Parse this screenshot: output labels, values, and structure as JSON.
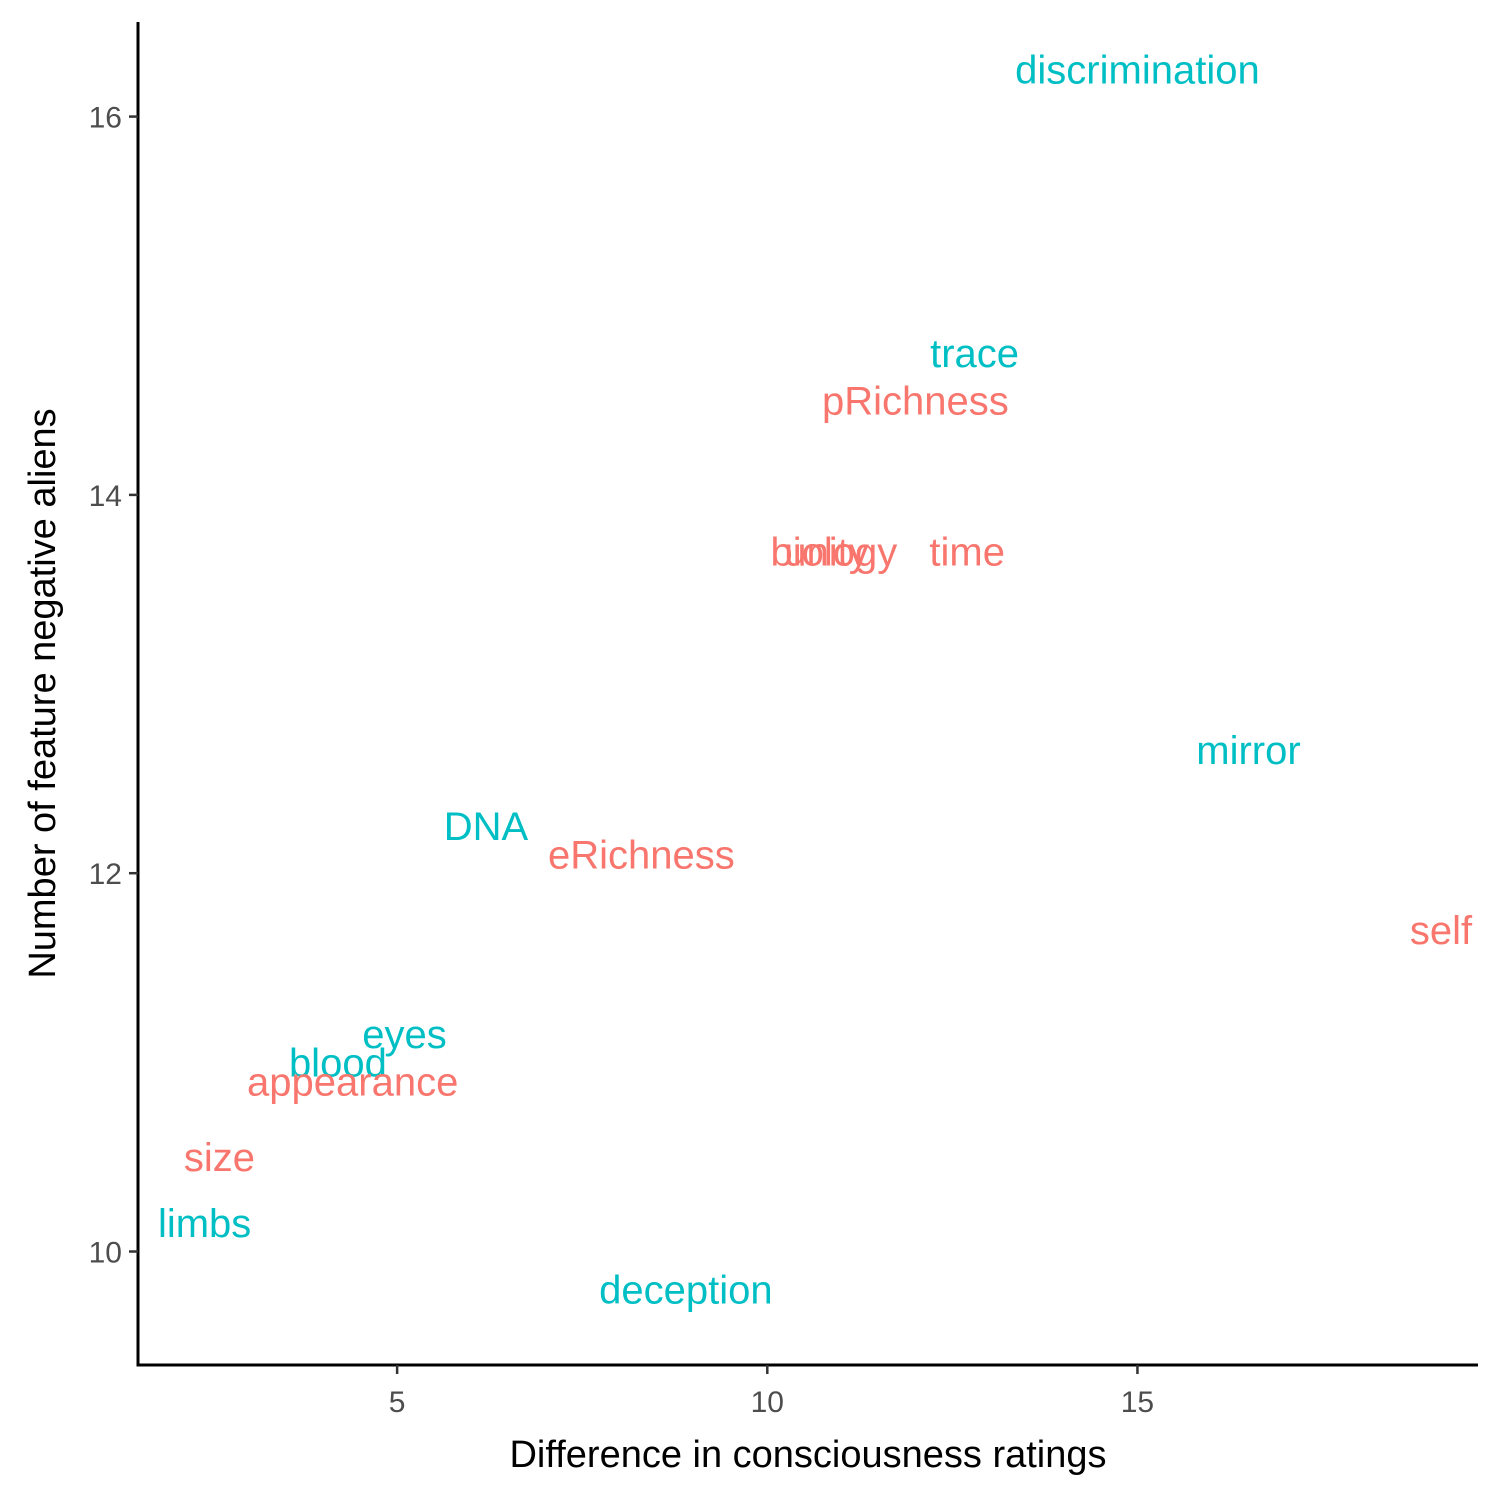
{
  "colors": {
    "groupA": "#F8766D",
    "groupB": "#00BFC4"
  },
  "chart_data": {
    "type": "scatter",
    "xlabel": "Difference in consciousness ratings",
    "ylabel": "Number of feature negative aliens",
    "xlim": [
      1.5,
      19.6
    ],
    "ylim": [
      9.4,
      16.5
    ],
    "xticks": [
      5,
      10,
      15
    ],
    "yticks": [
      10,
      12,
      14,
      16
    ],
    "grid": false,
    "legend": "none",
    "points": [
      {
        "label": "discrimination",
        "x": 15.0,
        "y": 16.25,
        "group": "groupB"
      },
      {
        "label": "trace",
        "x": 12.8,
        "y": 14.75,
        "group": "groupB"
      },
      {
        "label": "pRichness",
        "x": 12.0,
        "y": 14.5,
        "group": "groupA"
      },
      {
        "label": "biology",
        "x": 10.9,
        "y": 13.7,
        "group": "groupA"
      },
      {
        "label": "unity",
        "x": 10.8,
        "y": 13.7,
        "group": "groupA"
      },
      {
        "label": "time",
        "x": 12.7,
        "y": 13.7,
        "group": "groupA"
      },
      {
        "label": "mirror",
        "x": 16.5,
        "y": 12.65,
        "group": "groupB"
      },
      {
        "label": "DNA",
        "x": 6.2,
        "y": 12.25,
        "group": "groupB"
      },
      {
        "label": "eRichness",
        "x": 8.3,
        "y": 12.1,
        "group": "groupA"
      },
      {
        "label": "self",
        "x": 19.1,
        "y": 11.7,
        "group": "groupA"
      },
      {
        "label": "eyes",
        "x": 5.1,
        "y": 11.15,
        "group": "groupB"
      },
      {
        "label": "blood",
        "x": 4.2,
        "y": 11.0,
        "group": "groupB"
      },
      {
        "label": "appearance",
        "x": 4.4,
        "y": 10.9,
        "group": "groupA"
      },
      {
        "label": "size",
        "x": 2.6,
        "y": 10.5,
        "group": "groupA"
      },
      {
        "label": "limbs",
        "x": 2.4,
        "y": 10.15,
        "group": "groupB"
      },
      {
        "label": "deception",
        "x": 8.9,
        "y": 9.8,
        "group": "groupB"
      }
    ]
  }
}
